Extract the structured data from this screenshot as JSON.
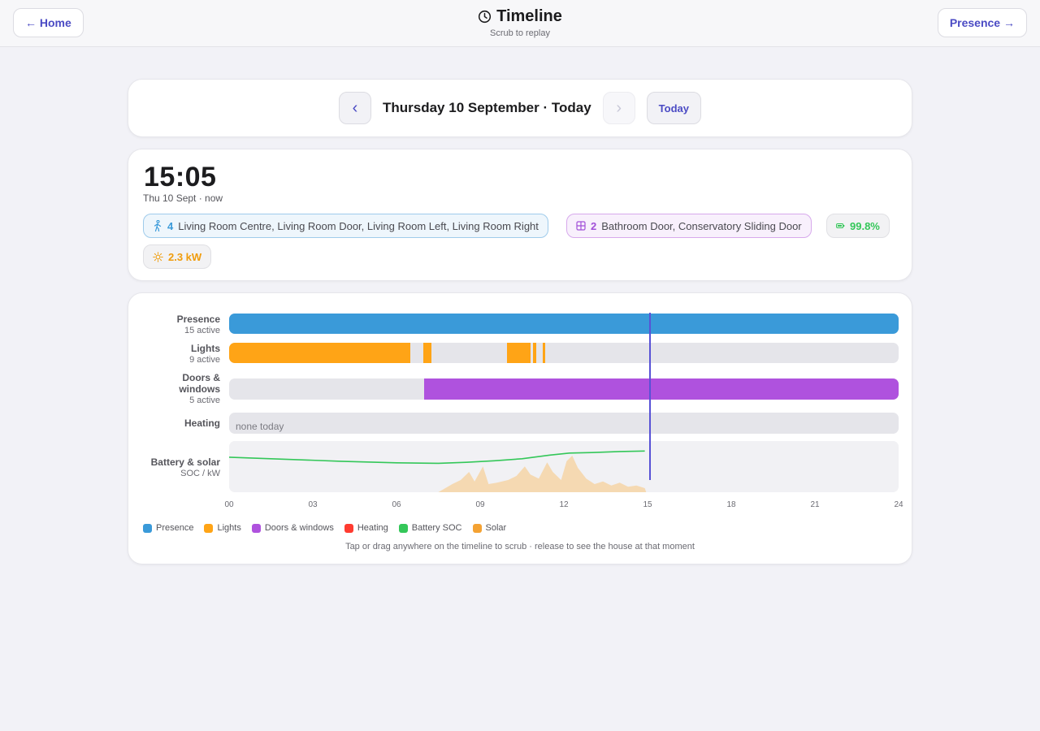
{
  "header": {
    "home_label": "← Home",
    "title": "Timeline",
    "subtitle": "Scrub to replay",
    "presence_label": "Presence →"
  },
  "date_nav": {
    "prev_glyph": "‹",
    "date_label": "Thursday 10 September · Today",
    "next_glyph": "›",
    "today_label": "Today"
  },
  "status": {
    "time": "15:05",
    "time_sub": "Thu 10 Sept · now",
    "presence_count": "4",
    "presence_rooms": "Living Room Centre, Living Room Door, Living Room Left, Living Room Right",
    "doors_count": "2",
    "doors_names": "Bathroom Door, Conservatory Sliding Door",
    "battery": "99.8%",
    "solar": "2.3 kW"
  },
  "timeline": {
    "rows": [
      {
        "label": "Presence",
        "sub": "15 active"
      },
      {
        "label": "Lights",
        "sub": "9 active"
      },
      {
        "label": "Doors & windows",
        "sub": "5 active"
      },
      {
        "label": "Heating",
        "sub": ""
      },
      {
        "label": "Battery & solar",
        "sub": "SOC / kW"
      }
    ],
    "heating_empty": "none today",
    "cursor_hour": 15.08,
    "ticks": [
      "00",
      "03",
      "06",
      "09",
      "12",
      "15",
      "18",
      "21",
      "24"
    ],
    "presence_segments_hours": [
      [
        0,
        24
      ]
    ],
    "lights_segments_hours": [
      [
        0,
        6.5
      ],
      [
        6.95,
        7.25
      ],
      [
        9.95,
        10.8
      ],
      [
        10.9,
        11.0
      ],
      [
        11.25,
        11.32
      ]
    ],
    "doors_segments_hours": [
      [
        7.0,
        24
      ]
    ],
    "battery_soc_points": [
      [
        0,
        78
      ],
      [
        2,
        74
      ],
      [
        4,
        70
      ],
      [
        6,
        67
      ],
      [
        7.5,
        66
      ],
      [
        8.5,
        68
      ],
      [
        9.5,
        71
      ],
      [
        10.5,
        75
      ],
      [
        11.5,
        82
      ],
      [
        12.2,
        86
      ],
      [
        13,
        87
      ],
      [
        14,
        89
      ],
      [
        14.9,
        90
      ]
    ],
    "solar_kw_points": [
      [
        7.5,
        0
      ],
      [
        8.0,
        0.6
      ],
      [
        8.3,
        0.9
      ],
      [
        8.6,
        1.5
      ],
      [
        8.8,
        0.8
      ],
      [
        9.1,
        1.9
      ],
      [
        9.3,
        0.6
      ],
      [
        9.6,
        0.7
      ],
      [
        10.0,
        0.9
      ],
      [
        10.3,
        1.2
      ],
      [
        10.6,
        1.9
      ],
      [
        10.8,
        1.3
      ],
      [
        11.1,
        1.0
      ],
      [
        11.4,
        2.2
      ],
      [
        11.6,
        1.5
      ],
      [
        11.9,
        0.9
      ],
      [
        12.1,
        2.3
      ],
      [
        12.3,
        2.7
      ],
      [
        12.5,
        1.8
      ],
      [
        12.8,
        1.0
      ],
      [
        13.1,
        0.6
      ],
      [
        13.4,
        0.8
      ],
      [
        13.7,
        0.5
      ],
      [
        14.0,
        0.7
      ],
      [
        14.3,
        0.4
      ],
      [
        14.6,
        0.5
      ],
      [
        14.9,
        0.3
      ],
      [
        14.95,
        0
      ]
    ],
    "legend": [
      {
        "label": "Presence",
        "color": "#3a9ad9"
      },
      {
        "label": "Lights",
        "color": "#ffa416"
      },
      {
        "label": "Doors & windows",
        "color": "#af52de"
      },
      {
        "label": "Heating",
        "color": "#ff3b30"
      },
      {
        "label": "Battery SOC",
        "color": "#34c759"
      },
      {
        "label": "Solar",
        "color": "#f4a233"
      }
    ],
    "hint": "Tap or drag anywhere on the timeline to scrub · release to see the house at that moment"
  },
  "colors": {
    "accent": "#4b4bc4",
    "presence": "#3a9ad9",
    "lights": "#ffa416",
    "doors": "#af52de",
    "battery": "#34c759",
    "solar_fill": "#f5d9b2",
    "cursor": "#5852d6"
  }
}
